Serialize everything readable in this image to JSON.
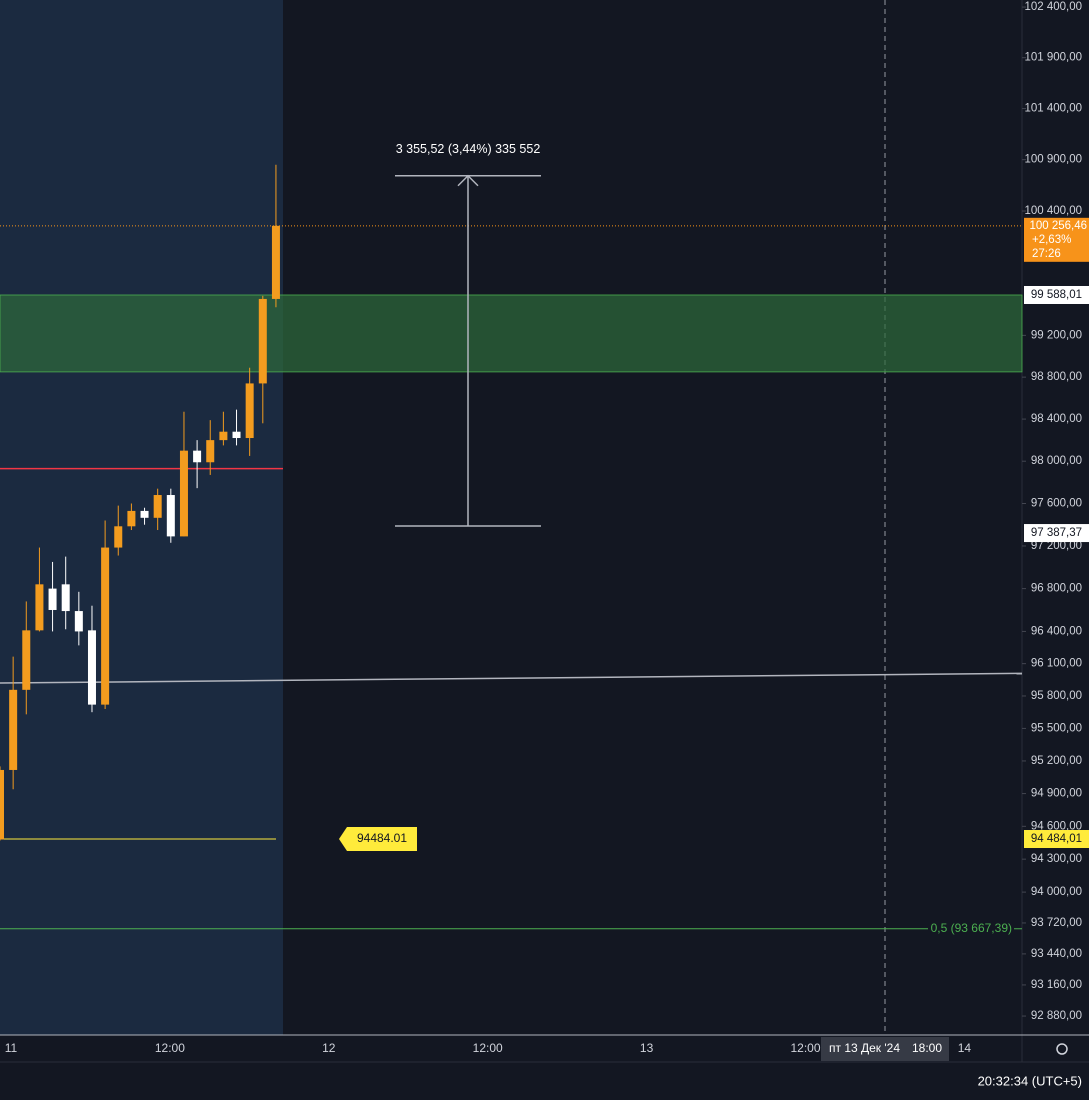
{
  "chart_data": {
    "type": "candlestick",
    "log_scale": true,
    "ylim": [
      92710,
      102470
    ],
    "yticks": [
      {
        "value": 102400,
        "label": "102 400,00"
      },
      {
        "value": 101900,
        "label": "101 900,00"
      },
      {
        "value": 101400,
        "label": "101 400,00"
      },
      {
        "value": 100900,
        "label": "100 900,00"
      },
      {
        "value": 100400,
        "label": "100 400,00"
      },
      {
        "value": 99200,
        "label": "99 200,00"
      },
      {
        "value": 98800,
        "label": "98 800,00"
      },
      {
        "value": 98400,
        "label": "98 400,00"
      },
      {
        "value": 98000,
        "label": "98 000,00"
      },
      {
        "value": 97600,
        "label": "97 600,00"
      },
      {
        "value": 97200,
        "label": "97 200,00"
      },
      {
        "value": 96800,
        "label": "96 800,00"
      },
      {
        "value": 96400,
        "label": "96 400,00"
      },
      {
        "value": 96100,
        "label": "96 100,00"
      },
      {
        "value": 95800,
        "label": "95 800,00"
      },
      {
        "value": 95500,
        "label": "95 500,00"
      },
      {
        "value": 95200,
        "label": "95 200,00"
      },
      {
        "value": 94900,
        "label": "94 900,00"
      },
      {
        "value": 94600,
        "label": "94 600,00"
      },
      {
        "value": 94300,
        "label": "94 300,00"
      },
      {
        "value": 94000,
        "label": "94 000,00"
      },
      {
        "value": 93720,
        "label": "93 720,00"
      },
      {
        "value": 93440,
        "label": "93 440,00"
      },
      {
        "value": 93160,
        "label": "93 160,00"
      },
      {
        "value": 92880,
        "label": "92 880,00"
      }
    ],
    "x_labels": [
      "11",
      "12:00",
      "12",
      "12:00",
      "13",
      "12:00",
      "14"
    ],
    "up_color": "#f39c1f",
    "down_color": "#ffffff",
    "candles": [
      {
        "open": 94480,
        "high": 95150,
        "low": 94470,
        "close": 95117
      },
      {
        "open": 95117,
        "high": 96165,
        "low": 94940,
        "close": 95857
      },
      {
        "open": 95857,
        "high": 96680,
        "low": 95630,
        "close": 96410
      },
      {
        "open": 96410,
        "high": 97185,
        "low": 96400,
        "close": 96840
      },
      {
        "open": 96800,
        "high": 97050,
        "low": 96400,
        "close": 96600
      },
      {
        "open": 96840,
        "high": 97100,
        "low": 96420,
        "close": 96590
      },
      {
        "open": 96590,
        "high": 96770,
        "low": 96270,
        "close": 96400
      },
      {
        "open": 96410,
        "high": 96640,
        "low": 95650,
        "close": 95720
      },
      {
        "open": 95720,
        "high": 97440,
        "low": 95680,
        "close": 97185
      },
      {
        "open": 97185,
        "high": 97580,
        "low": 97110,
        "close": 97385
      },
      {
        "open": 97385,
        "high": 97600,
        "low": 97350,
        "close": 97530
      },
      {
        "open": 97530,
        "high": 97560,
        "low": 97400,
        "close": 97465
      },
      {
        "open": 97465,
        "high": 97740,
        "low": 97350,
        "close": 97680
      },
      {
        "open": 97680,
        "high": 97740,
        "low": 97230,
        "close": 97290
      },
      {
        "open": 97290,
        "high": 98470,
        "low": 97290,
        "close": 98100
      },
      {
        "open": 98100,
        "high": 98200,
        "low": 97745,
        "close": 97990
      },
      {
        "open": 97990,
        "high": 98390,
        "low": 97870,
        "close": 98200
      },
      {
        "open": 98200,
        "high": 98470,
        "low": 98150,
        "close": 98280
      },
      {
        "open": 98280,
        "high": 98490,
        "low": 98150,
        "close": 98220
      },
      {
        "open": 98220,
        "high": 98890,
        "low": 98050,
        "close": 98740
      },
      {
        "open": 98740,
        "high": 99580,
        "low": 98360,
        "close": 99550
      },
      {
        "open": 99550,
        "high": 100850,
        "low": 99470,
        "close": 100256.46
      }
    ],
    "current_price": {
      "value": 100256.46,
      "label": "100 256,46",
      "change": "+2,63%",
      "countdown": "27:26",
      "color": "#f7931a"
    },
    "zone": {
      "top": 99588.01,
      "top_label": "99 588,01",
      "bottom": 98850,
      "color": "#2e6b3a"
    },
    "support_line": {
      "value": 97930,
      "color": "#f23645"
    },
    "trend_line": {
      "start": 95920,
      "end": 96010,
      "color": "#b2b5be"
    },
    "yellow_line": {
      "value": 94484.01,
      "label": "94484.01",
      "axis_label": "94 484,01",
      "color": "#ffeb3b"
    },
    "fib_line": {
      "value": 93667.39,
      "label": "0,5 (93 667,39)",
      "color": "#4caf50"
    },
    "measure": {
      "from": 97387.37,
      "from_label": "97 387,37",
      "to": 100742.89,
      "label": "3 355,52 (3,44%) 335 552"
    },
    "crosshair": {
      "date": "пт 13 Дек '24",
      "time": "18:00"
    },
    "clock": "20:32:34 (UTC+5)"
  }
}
